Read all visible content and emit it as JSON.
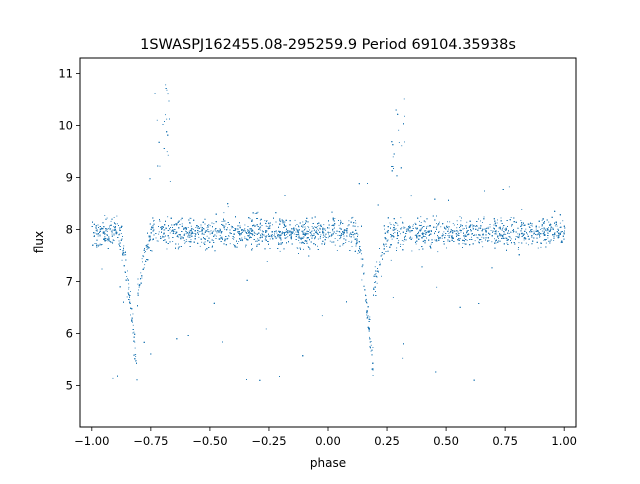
{
  "chart_data": {
    "type": "scatter",
    "title": "1SWASPJ162455.08-295259.9 Period 69104.35938s",
    "xlabel": "phase",
    "ylabel": "flux",
    "xlim": [
      -1.05,
      1.05
    ],
    "ylim": [
      4.2,
      11.3
    ],
    "xticks": [
      -1.0,
      -0.75,
      -0.5,
      -0.25,
      0.0,
      0.25,
      0.5,
      0.75,
      1.0
    ],
    "xtick_labels": [
      "−1.00",
      "−0.75",
      "−0.50",
      "−0.25",
      "0.00",
      "0.25",
      "0.50",
      "0.75",
      "1.00"
    ],
    "yticks": [
      5,
      6,
      7,
      8,
      9,
      10,
      11
    ],
    "ytick_labels": [
      "5",
      "6",
      "7",
      "8",
      "9",
      "10",
      "11"
    ],
    "grid": false,
    "legend": "none",
    "marker_color": "#1f77b4",
    "series": [
      {
        "x_range": [
          -1.0,
          1.0
        ],
        "baseline_flux": 7.95,
        "baseline_scatter": 0.25,
        "eclipse_centers": [
          -0.81,
          0.19
        ],
        "eclipse_min_flux": 5.2,
        "eclipse_halfwidth": 0.08,
        "eclipse_tail_flux": 6.9,
        "brightening_centers": [
          -0.7,
          0.3
        ],
        "brightening_peak_flux": 10.8,
        "sample_points": [
          {
            "x": -1.0,
            "y": 7.9
          },
          {
            "x": -0.9,
            "y": 8.0
          },
          {
            "x": -0.85,
            "y": 7.5
          },
          {
            "x": -0.81,
            "y": 5.2
          },
          {
            "x": -0.78,
            "y": 6.9
          },
          {
            "x": -0.75,
            "y": 8.0
          },
          {
            "x": -0.7,
            "y": 10.2
          },
          {
            "x": -0.5,
            "y": 8.0
          },
          {
            "x": -0.25,
            "y": 8.0
          },
          {
            "x": 0.0,
            "y": 7.9
          },
          {
            "x": 0.1,
            "y": 7.9
          },
          {
            "x": 0.15,
            "y": 7.4
          },
          {
            "x": 0.19,
            "y": 5.2
          },
          {
            "x": 0.22,
            "y": 6.9
          },
          {
            "x": 0.25,
            "y": 8.0
          },
          {
            "x": 0.3,
            "y": 10.2
          },
          {
            "x": 0.5,
            "y": 8.0
          },
          {
            "x": 0.75,
            "y": 8.0
          },
          {
            "x": 1.0,
            "y": 7.9
          }
        ]
      }
    ]
  }
}
